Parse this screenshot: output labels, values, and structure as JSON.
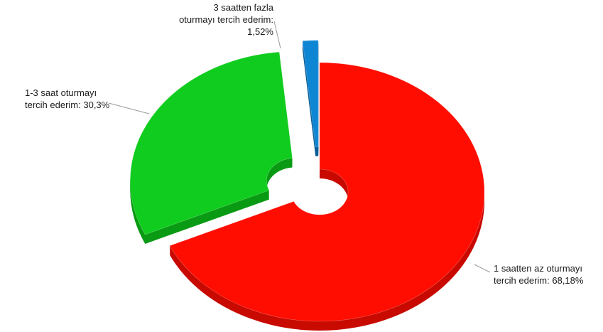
{
  "chart_data": {
    "type": "pie",
    "style": "3d-exploded-doughnut",
    "slices": [
      {
        "label_lines": [
          "1 saatten az oturmayı",
          "tercih ederim: 68,18%"
        ],
        "value": 68.18,
        "color": "#ff0d00",
        "side_color": "#c80a00"
      },
      {
        "label_lines": [
          "1-3 saat oturmayı",
          "tercih ederim: 30,3%"
        ],
        "value": 30.3,
        "color": "#10cc1e",
        "side_color": "#0a9a14"
      },
      {
        "label_lines": [
          "3 saatten fazla",
          "oturmayı tercih ederim:",
          "1,52%"
        ],
        "value": 1.52,
        "color": "#0e86d4",
        "side_color": "#0a5f98"
      }
    ]
  }
}
